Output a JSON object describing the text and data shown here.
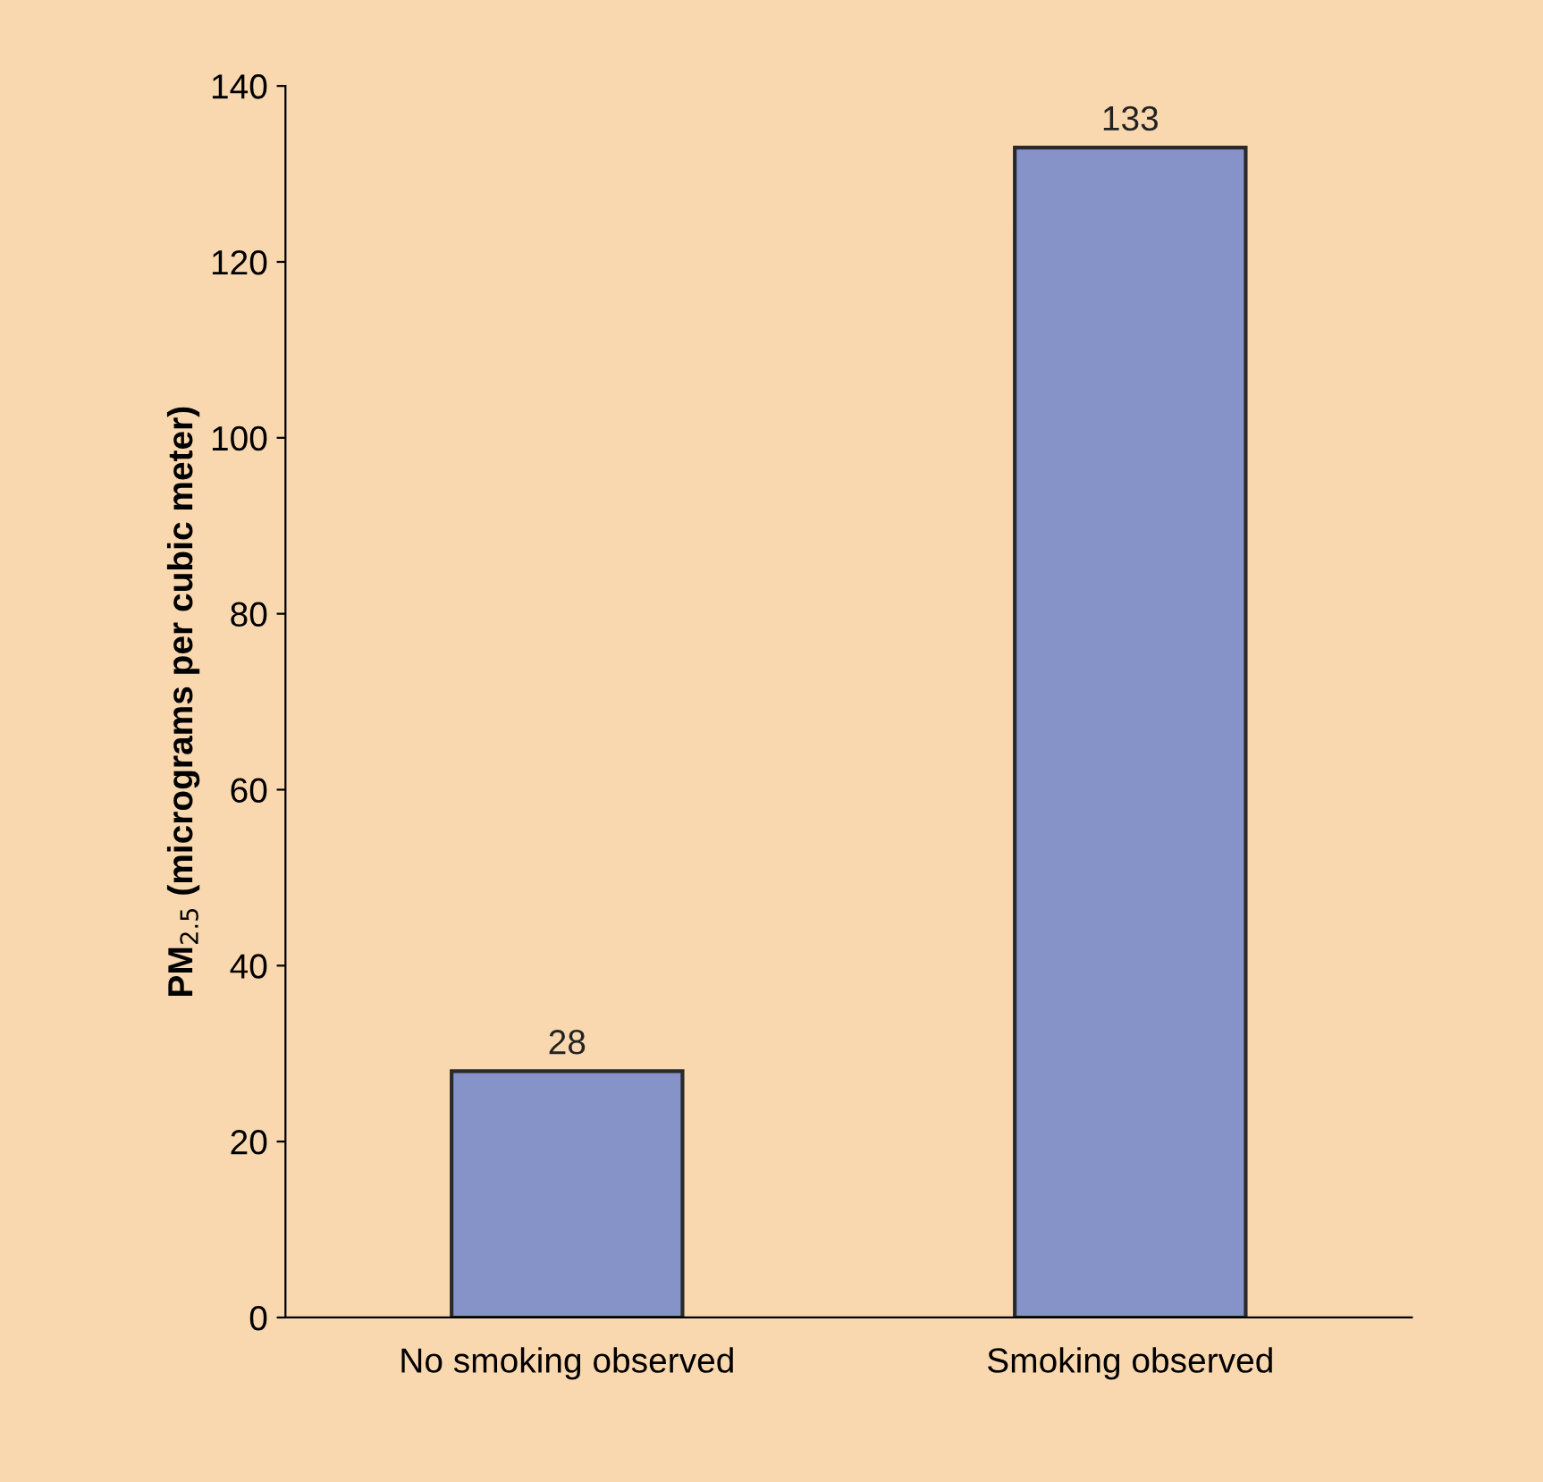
{
  "chart_data": {
    "type": "bar",
    "categories": [
      "No smoking observed",
      "Smoking observed"
    ],
    "values": [
      28,
      133
    ],
    "color": "#8593c9",
    "ylabel": "PM$_{2.5}$ (micrograms per cubic meter)",
    "ylim": [
      0,
      140
    ],
    "yticks": [
      0,
      20,
      40,
      60,
      80,
      100,
      120,
      140
    ],
    "data_labels": true,
    "grid": false
  }
}
